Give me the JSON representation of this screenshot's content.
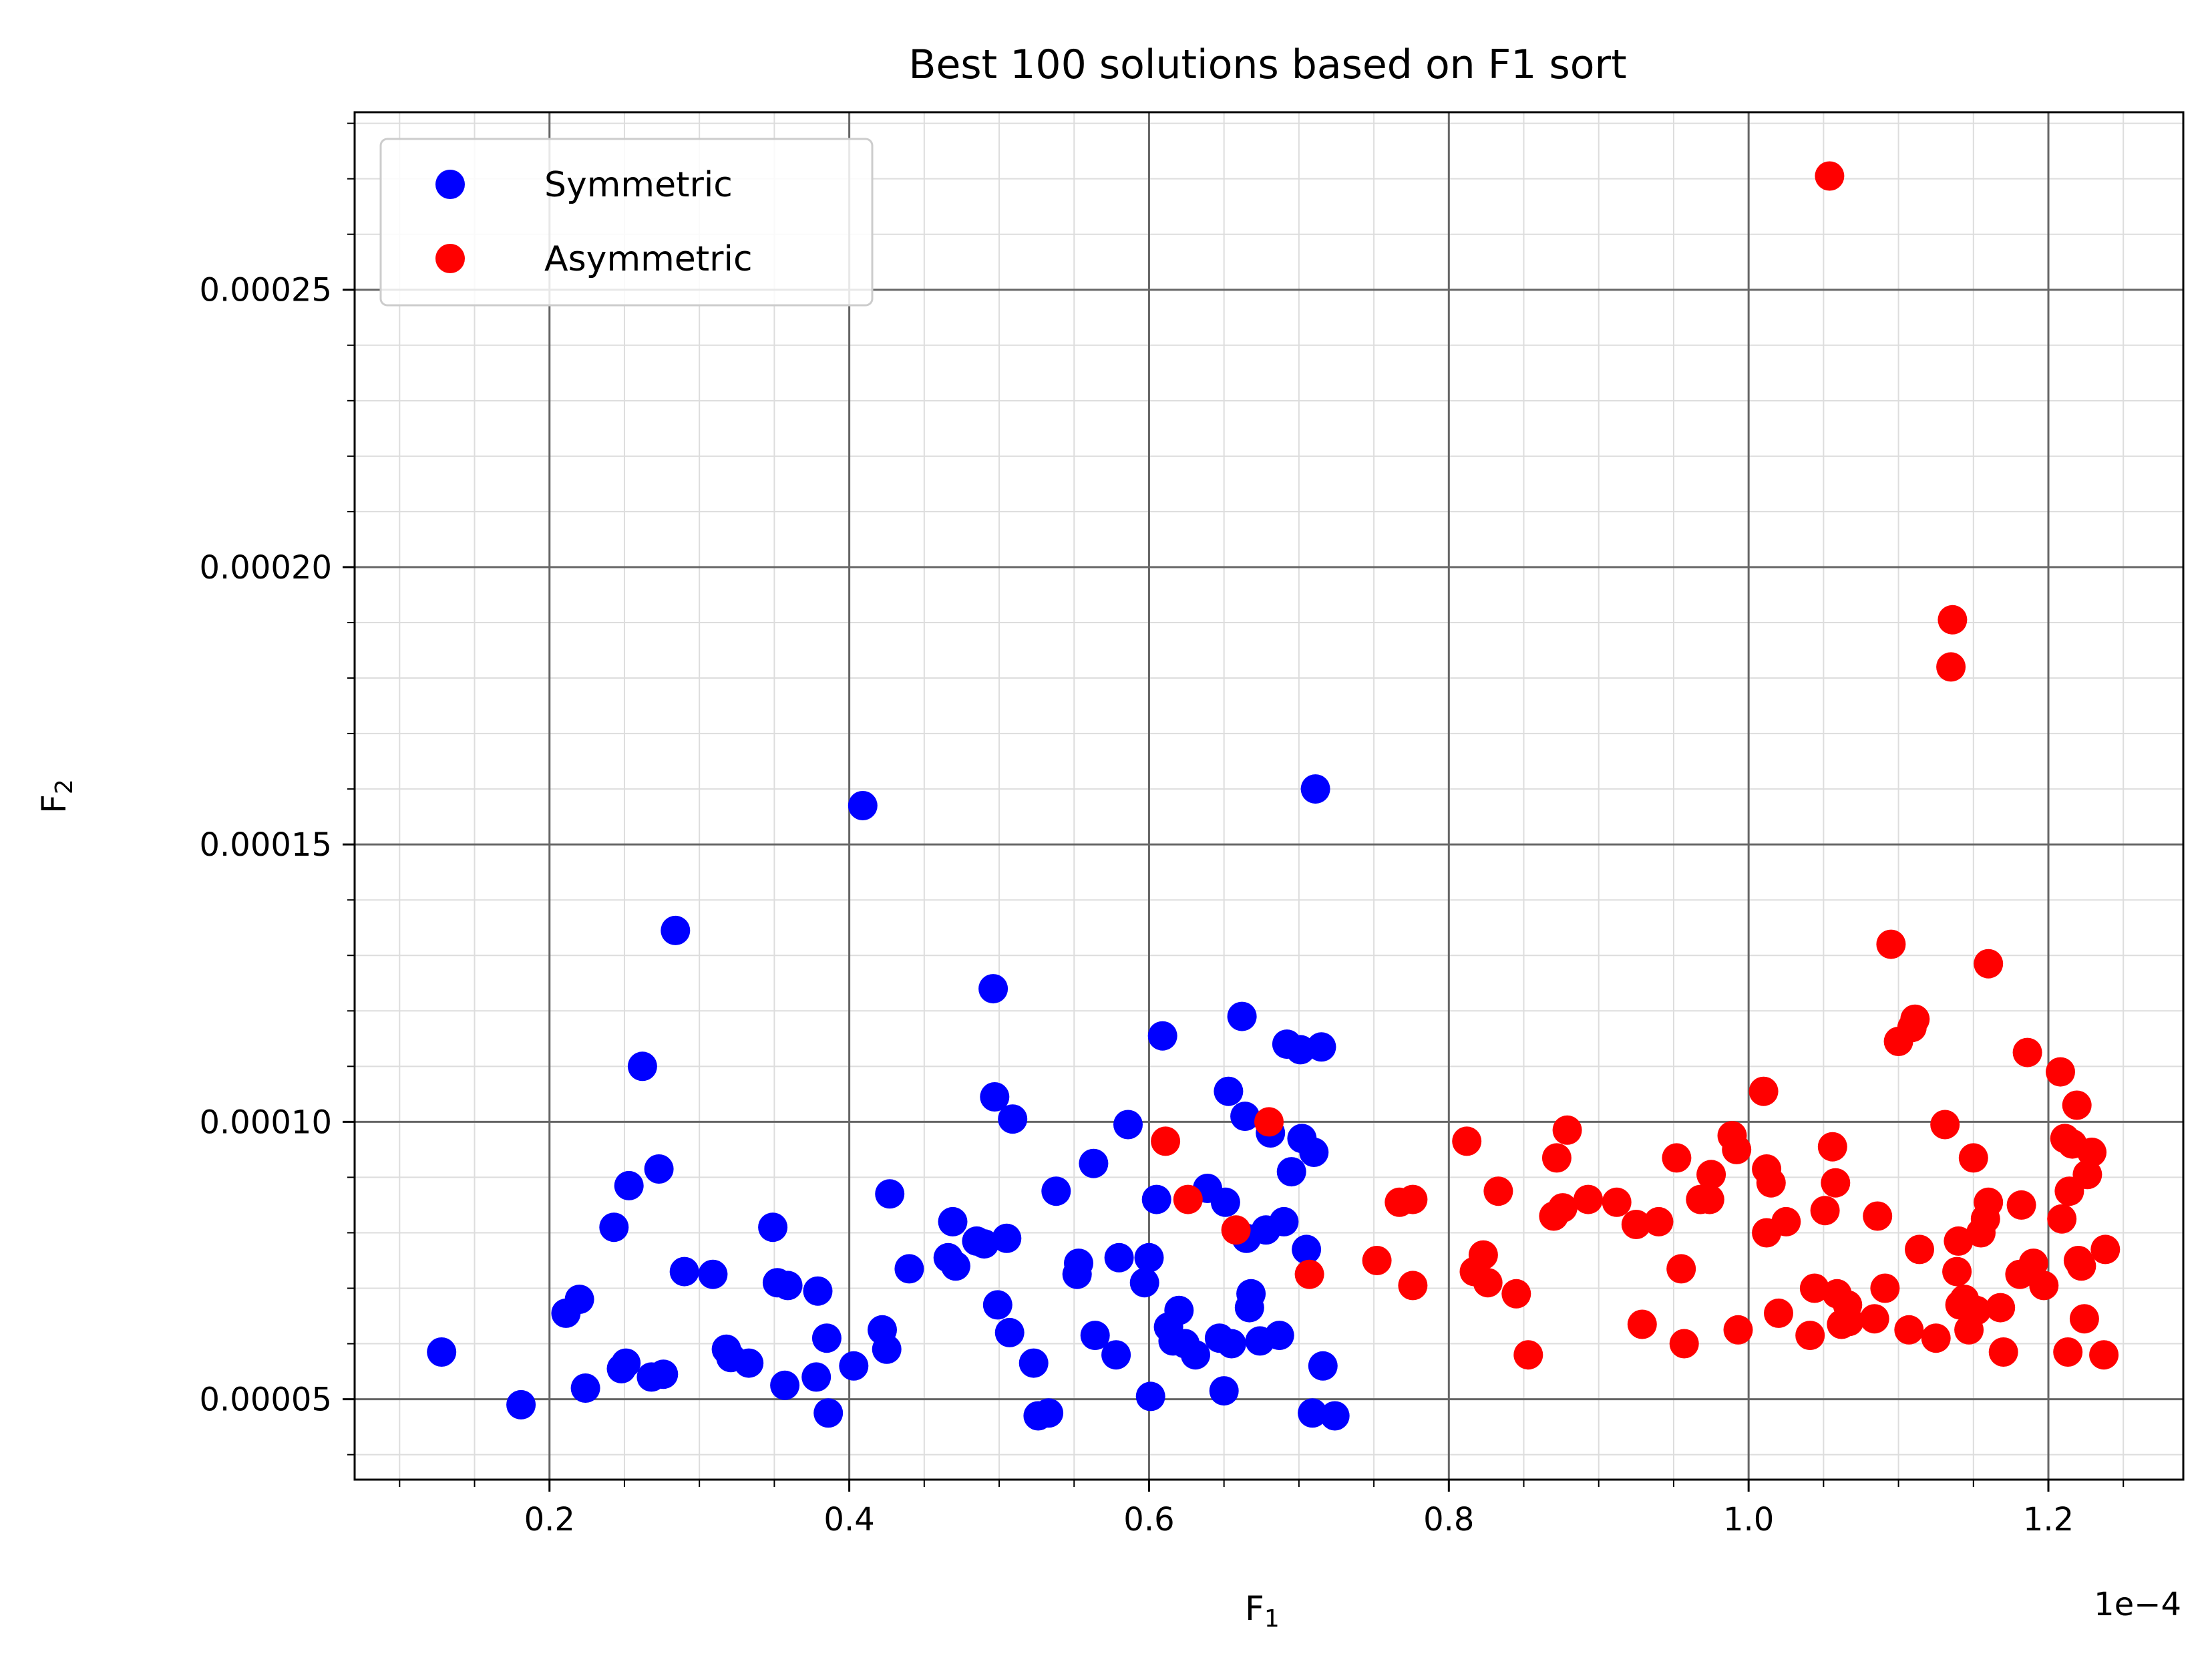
{
  "chart_data": {
    "type": "scatter",
    "title": "Best 100 solutions based on F1 sort",
    "xlabel": "F",
    "xlabel_sub": "1",
    "ylabel": "F",
    "ylabel_sub": "2",
    "x_offset_text": "1e−4",
    "xlim": [
      0.07,
      1.29
    ],
    "ylim": [
      3.55e-05,
      0.000282
    ],
    "x_ticks": [
      0.2,
      0.4,
      0.6,
      0.8,
      1.0,
      1.2
    ],
    "x_tick_labels": [
      "0.2",
      "0.4",
      "0.6",
      "0.8",
      "1.0",
      "1.2"
    ],
    "y_ticks": [
      5e-05,
      0.0001,
      0.00015,
      0.0002,
      0.00025
    ],
    "y_tick_labels": [
      "0.00005",
      "0.00010",
      "0.00015",
      "0.00020",
      "0.00025"
    ],
    "grid": true,
    "minor_grid": true,
    "legend_position": "top-left",
    "series": [
      {
        "name": "Symmetric",
        "color": "#0000ff",
        "points": [
          [
            0.128,
            5.85e-05
          ],
          [
            0.181,
            4.9e-05
          ],
          [
            0.211,
            6.55e-05
          ],
          [
            0.22,
            6.8e-05
          ],
          [
            0.224,
            5.2e-05
          ],
          [
            0.243,
            8.1e-05
          ],
          [
            0.248,
            5.55e-05
          ],
          [
            0.251,
            5.65e-05
          ],
          [
            0.253,
            8.85e-05
          ],
          [
            0.262,
            0.00011
          ],
          [
            0.268,
            5.4e-05
          ],
          [
            0.273,
            9.15e-05
          ],
          [
            0.276,
            5.45e-05
          ],
          [
            0.284,
            0.0001345
          ],
          [
            0.29,
            7.3e-05
          ],
          [
            0.309,
            7.25e-05
          ],
          [
            0.318,
            5.9e-05
          ],
          [
            0.321,
            5.75e-05
          ],
          [
            0.333,
            5.65e-05
          ],
          [
            0.349,
            8.1e-05
          ],
          [
            0.352,
            7.1e-05
          ],
          [
            0.357,
            5.25e-05
          ],
          [
            0.359,
            7.05e-05
          ],
          [
            0.378,
            5.4e-05
          ],
          [
            0.379,
            6.95e-05
          ],
          [
            0.385,
            6.1e-05
          ],
          [
            0.386,
            4.75e-05
          ],
          [
            0.403,
            5.6e-05
          ],
          [
            0.409,
            0.000157
          ],
          [
            0.422,
            6.25e-05
          ],
          [
            0.425,
            5.9e-05
          ],
          [
            0.427,
            8.7e-05
          ],
          [
            0.44,
            7.35e-05
          ],
          [
            0.466,
            7.55e-05
          ],
          [
            0.469,
            8.2e-05
          ],
          [
            0.471,
            7.4e-05
          ],
          [
            0.485,
            7.85e-05
          ],
          [
            0.49,
            7.8e-05
          ],
          [
            0.496,
            0.000124
          ],
          [
            0.497,
            0.0001045
          ],
          [
            0.499,
            6.7e-05
          ],
          [
            0.505,
            7.9e-05
          ],
          [
            0.507,
            6.2e-05
          ],
          [
            0.509,
            0.0001005
          ],
          [
            0.523,
            5.65e-05
          ],
          [
            0.526,
            4.7e-05
          ],
          [
            0.533,
            4.75e-05
          ],
          [
            0.538,
            8.75e-05
          ],
          [
            0.552,
            7.25e-05
          ],
          [
            0.553,
            7.45e-05
          ],
          [
            0.563,
            9.25e-05
          ],
          [
            0.564,
            6.15e-05
          ],
          [
            0.578,
            5.8e-05
          ],
          [
            0.58,
            7.55e-05
          ],
          [
            0.586,
            9.95e-05
          ],
          [
            0.597,
            7.1e-05
          ],
          [
            0.6,
            7.55e-05
          ],
          [
            0.601,
            5.05e-05
          ],
          [
            0.605,
            8.6e-05
          ],
          [
            0.609,
            0.0001155
          ],
          [
            0.613,
            6.3e-05
          ],
          [
            0.616,
            6.05e-05
          ],
          [
            0.62,
            6.6e-05
          ],
          [
            0.624,
            6e-05
          ],
          [
            0.631,
            5.8e-05
          ],
          [
            0.639,
            8.8e-05
          ],
          [
            0.647,
            6.1e-05
          ],
          [
            0.65,
            5.15e-05
          ],
          [
            0.651,
            8.55e-05
          ],
          [
            0.653,
            0.0001055
          ],
          [
            0.655,
            6e-05
          ],
          [
            0.662,
            0.000119
          ],
          [
            0.664,
            0.000101
          ],
          [
            0.665,
            7.9e-05
          ],
          [
            0.667,
            6.65e-05
          ],
          [
            0.668,
            6.9e-05
          ],
          [
            0.674,
            6.05e-05
          ],
          [
            0.678,
            8.05e-05
          ],
          [
            0.681,
            9.8e-05
          ],
          [
            0.687,
            6.15e-05
          ],
          [
            0.69,
            8.2e-05
          ],
          [
            0.692,
            0.000114
          ],
          [
            0.695,
            9.1e-05
          ],
          [
            0.701,
            0.000113
          ],
          [
            0.702,
            9.7e-05
          ],
          [
            0.705,
            7.7e-05
          ],
          [
            0.709,
            4.75e-05
          ],
          [
            0.71,
            9.45e-05
          ],
          [
            0.711,
            0.00016
          ],
          [
            0.715,
            0.0001135
          ],
          [
            0.716,
            5.6e-05
          ],
          [
            0.724,
            4.7e-05
          ]
        ]
      },
      {
        "name": "Asymmetric",
        "color": "#ff0000",
        "points": [
          [
            0.611,
            9.65e-05
          ],
          [
            0.626,
            8.6e-05
          ],
          [
            0.658,
            8.05e-05
          ],
          [
            0.68,
            0.0001
          ],
          [
            0.707,
            7.25e-05
          ],
          [
            0.752,
            7.5e-05
          ],
          [
            0.767,
            8.55e-05
          ],
          [
            0.776,
            8.6e-05
          ],
          [
            0.776,
            7.05e-05
          ],
          [
            0.812,
            9.65e-05
          ],
          [
            0.817,
            7.3e-05
          ],
          [
            0.823,
            7.6e-05
          ],
          [
            0.826,
            7.1e-05
          ],
          [
            0.833,
            8.75e-05
          ],
          [
            0.845,
            6.9e-05
          ],
          [
            0.853,
            5.8e-05
          ],
          [
            0.87,
            8.3e-05
          ],
          [
            0.872,
            9.35e-05
          ],
          [
            0.876,
            8.45e-05
          ],
          [
            0.879,
            9.85e-05
          ],
          [
            0.893,
            8.6e-05
          ],
          [
            0.912,
            8.55e-05
          ],
          [
            0.925,
            8.15e-05
          ],
          [
            0.929,
            6.35e-05
          ],
          [
            0.94,
            8.2e-05
          ],
          [
            0.952,
            9.35e-05
          ],
          [
            0.955,
            7.35e-05
          ],
          [
            0.957,
            6e-05
          ],
          [
            0.968,
            8.6e-05
          ],
          [
            0.974,
            8.6e-05
          ],
          [
            0.975,
            9.05e-05
          ],
          [
            0.989,
            9.75e-05
          ],
          [
            0.992,
            9.5e-05
          ],
          [
            0.993,
            6.25e-05
          ],
          [
            1.01,
            0.0001055
          ],
          [
            1.012,
            8e-05
          ],
          [
            1.012,
            9.15e-05
          ],
          [
            1.015,
            8.9e-05
          ],
          [
            1.02,
            6.55e-05
          ],
          [
            1.025,
            8.2e-05
          ],
          [
            1.041,
            6.15e-05
          ],
          [
            1.044,
            7e-05
          ],
          [
            1.051,
            8.4e-05
          ],
          [
            1.054,
            0.0002705
          ],
          [
            1.056,
            9.55e-05
          ],
          [
            1.058,
            8.9e-05
          ],
          [
            1.059,
            6.9e-05
          ],
          [
            1.062,
            6.35e-05
          ],
          [
            1.066,
            6.7e-05
          ],
          [
            1.067,
            6.4e-05
          ],
          [
            1.084,
            6.45e-05
          ],
          [
            1.086,
            8.3e-05
          ],
          [
            1.091,
            7e-05
          ],
          [
            1.095,
            0.000132
          ],
          [
            1.1,
            0.0001145
          ],
          [
            1.107,
            6.25e-05
          ],
          [
            1.109,
            0.000117
          ],
          [
            1.111,
            0.0001185
          ],
          [
            1.114,
            7.7e-05
          ],
          [
            1.125,
            6.1e-05
          ],
          [
            1.131,
            9.95e-05
          ],
          [
            1.135,
            0.000182
          ],
          [
            1.136,
            0.0001905
          ],
          [
            1.139,
            7.3e-05
          ],
          [
            1.14,
            7.85e-05
          ],
          [
            1.141,
            6.7e-05
          ],
          [
            1.144,
            6.8e-05
          ],
          [
            1.147,
            6.25e-05
          ],
          [
            1.15,
            9.35e-05
          ],
          [
            1.152,
            6.6e-05
          ],
          [
            1.155,
            8e-05
          ],
          [
            1.158,
            8.25e-05
          ],
          [
            1.16,
            0.0001285
          ],
          [
            1.16,
            8.55e-05
          ],
          [
            1.168,
            6.65e-05
          ],
          [
            1.17,
            5.85e-05
          ],
          [
            1.181,
            7.25e-05
          ],
          [
            1.182,
            8.5e-05
          ],
          [
            1.186,
            0.0001125
          ],
          [
            1.19,
            7.45e-05
          ],
          [
            1.197,
            7.05e-05
          ],
          [
            1.208,
            0.000109
          ],
          [
            1.209,
            8.25e-05
          ],
          [
            1.211,
            9.7e-05
          ],
          [
            1.213,
            5.85e-05
          ],
          [
            1.214,
            8.75e-05
          ],
          [
            1.216,
            9.6e-05
          ],
          [
            1.219,
            0.000103
          ],
          [
            1.22,
            7.5e-05
          ],
          [
            1.222,
            7.4e-05
          ],
          [
            1.224,
            6.45e-05
          ],
          [
            1.226,
            9.05e-05
          ],
          [
            1.229,
            9.45e-05
          ],
          [
            1.237,
            5.8e-05
          ],
          [
            1.238,
            7.7e-05
          ]
        ]
      }
    ]
  }
}
